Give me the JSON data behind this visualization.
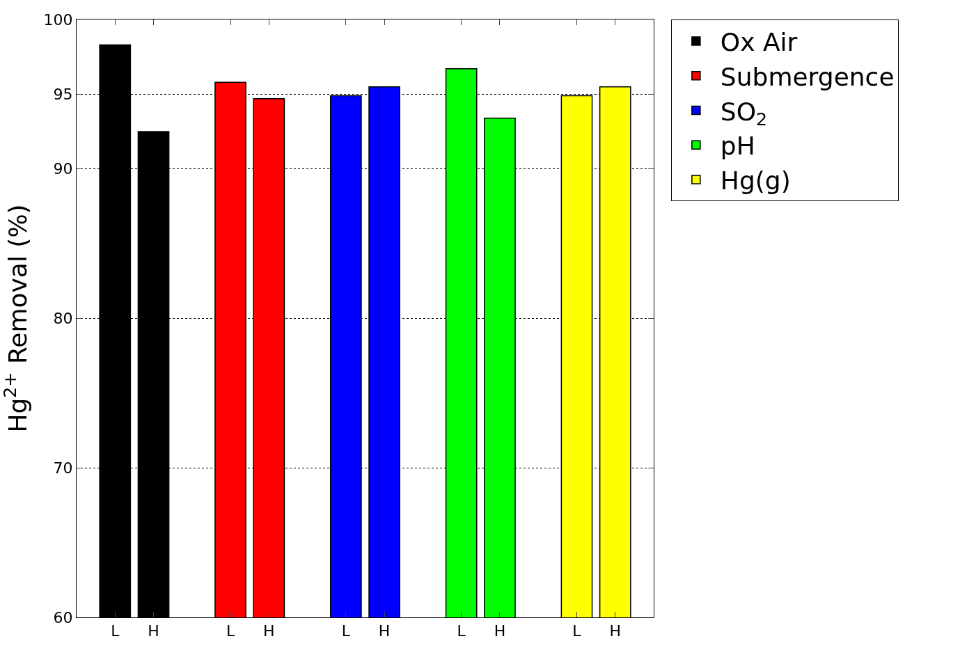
{
  "chart_data": {
    "type": "bar",
    "ylabel": "Hg$^{2+}$ Removal (%)",
    "categories": [
      "L",
      "H",
      null,
      "L",
      "H",
      null,
      "L",
      "H",
      null,
      "L",
      "H",
      null,
      "L",
      "H"
    ],
    "series": [
      {
        "name": "Ox Air",
        "color": "#000000",
        "values": [
          98.3,
          92.5,
          null,
          null,
          null,
          null,
          null,
          null,
          null,
          null,
          null,
          null,
          null,
          null
        ]
      },
      {
        "name": "Submergence",
        "color": "#ff0000",
        "values": [
          null,
          null,
          null,
          95.8,
          94.7,
          null,
          null,
          null,
          null,
          null,
          null,
          null,
          null,
          null
        ]
      },
      {
        "name": "SO$_{2}$",
        "color": "#0000ff",
        "values": [
          null,
          null,
          null,
          null,
          null,
          null,
          94.9,
          95.5,
          null,
          null,
          null,
          null,
          null,
          null
        ]
      },
      {
        "name": "pH",
        "color": "#00ff00",
        "values": [
          null,
          null,
          null,
          null,
          null,
          null,
          null,
          null,
          null,
          96.7,
          93.4,
          null,
          null,
          null
        ]
      },
      {
        "name": "Hg(g)",
        "color": "#ffff00",
        "values": [
          null,
          null,
          null,
          null,
          null,
          null,
          null,
          null,
          null,
          null,
          null,
          null,
          94.9,
          95.5
        ]
      }
    ],
    "ylim": [
      60,
      100
    ],
    "yticks": [
      60,
      70,
      80,
      90,
      95,
      100
    ],
    "grid": "y",
    "legend": "top right"
  }
}
